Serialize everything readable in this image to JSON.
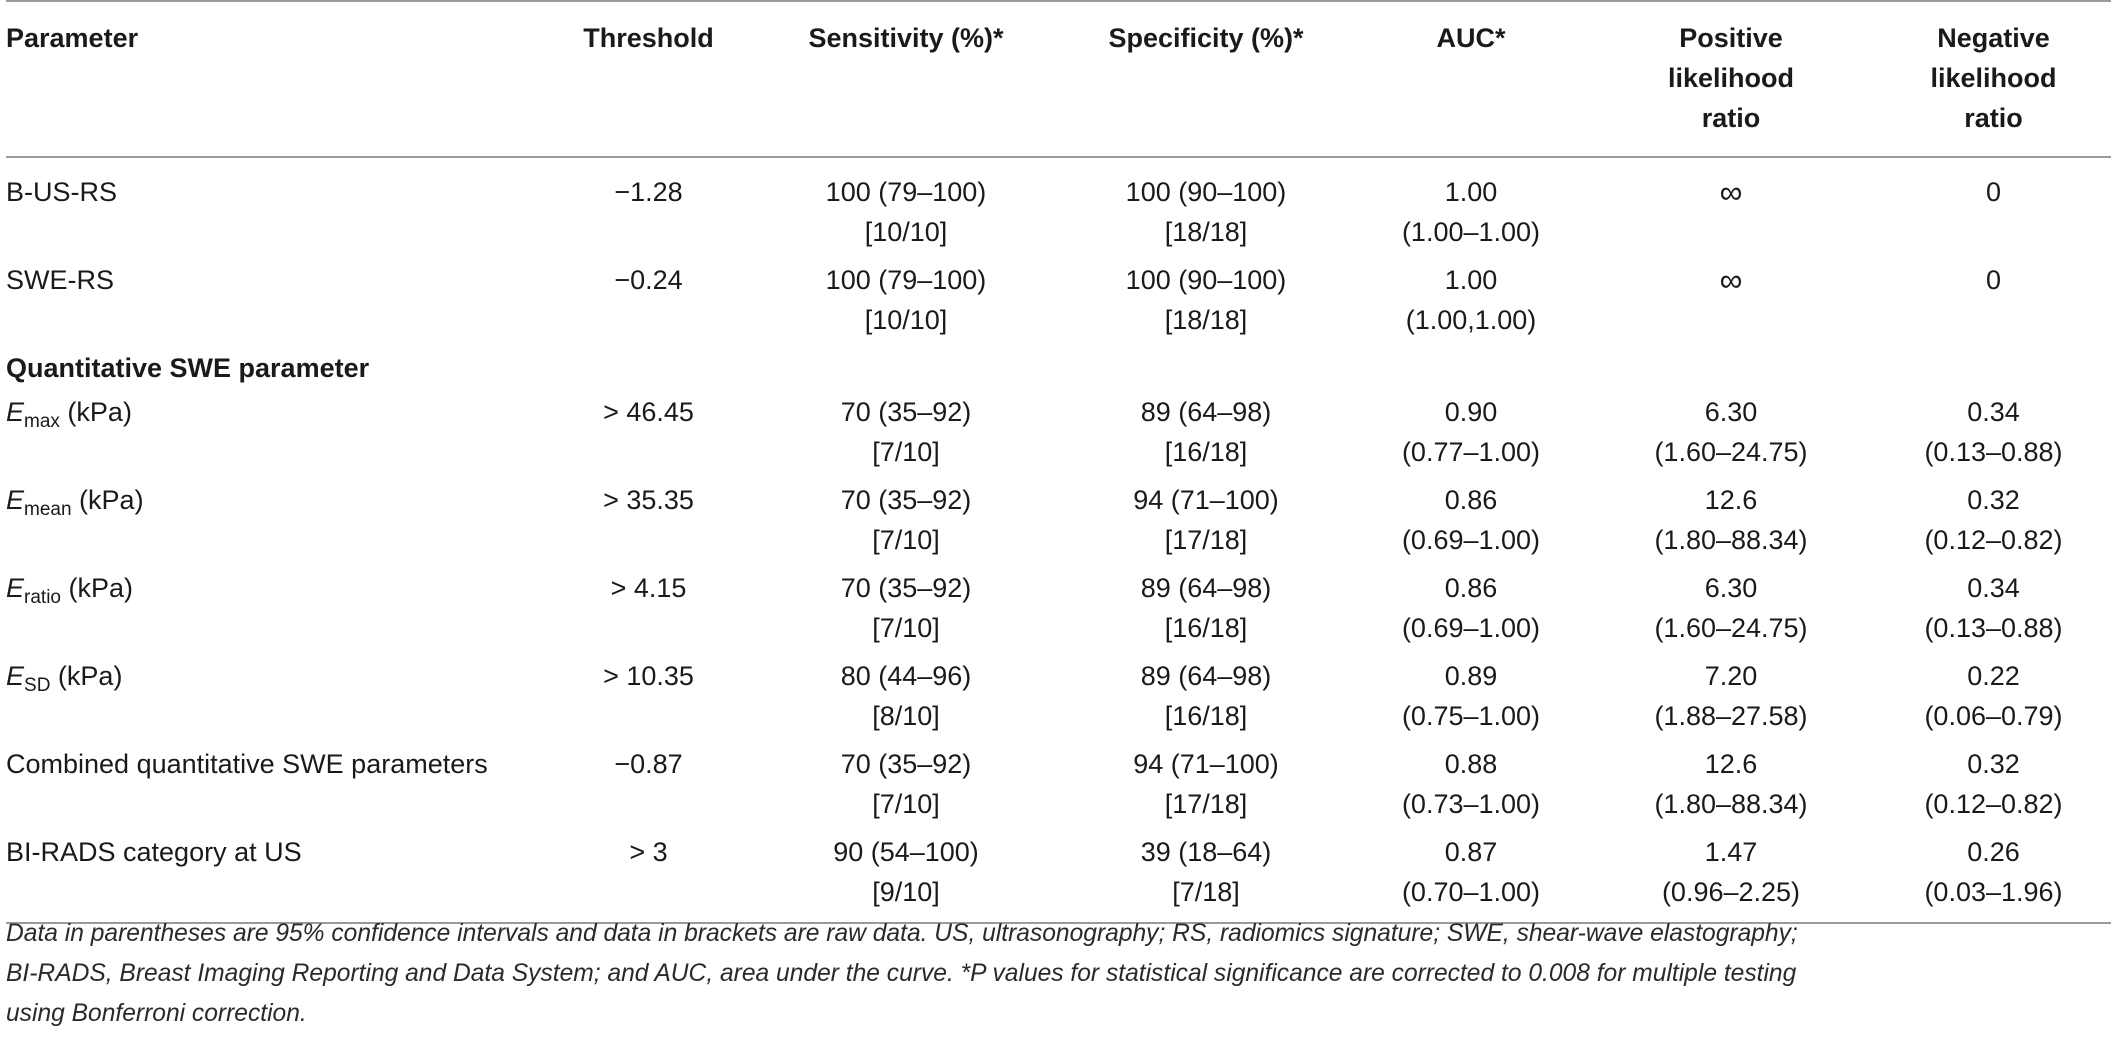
{
  "table": {
    "headers": {
      "parameter": "Parameter",
      "threshold": "Threshold",
      "sensitivity": "Sensitivity (%)*",
      "specificity": "Specificity (%)*",
      "auc": "AUC*",
      "plr": [
        "Positive",
        "likelihood",
        "ratio"
      ],
      "nlr": [
        "Negative",
        "likelihood",
        "ratio"
      ]
    },
    "rows": [
      {
        "parameter": "B-US-RS",
        "threshold": "−1.28",
        "sensitivity": [
          "100 (79–100)",
          "[10/10]"
        ],
        "specificity": [
          "100 (90–100)",
          "[18/18]"
        ],
        "auc": [
          "1.00",
          "(1.00–1.00)"
        ],
        "plr": [
          "∞",
          ""
        ],
        "nlr": [
          "0",
          ""
        ]
      },
      {
        "parameter": "SWE-RS",
        "threshold": "−0.24",
        "sensitivity": [
          "100 (79–100)",
          "[10/10]"
        ],
        "specificity": [
          "100 (90–100)",
          "[18/18]"
        ],
        "auc": [
          "1.00",
          "(1.00,1.00)"
        ],
        "plr": [
          "∞",
          ""
        ],
        "nlr": [
          "0",
          ""
        ]
      }
    ],
    "section_title": "Quantitative SWE parameter",
    "quant_rows": [
      {
        "param_symbol": "E",
        "param_sub": "max",
        "param_unit": " (kPa)",
        "threshold": "> 46.45",
        "sensitivity": [
          "70 (35–92)",
          "[7/10]"
        ],
        "specificity": [
          "89 (64–98)",
          "[16/18]"
        ],
        "auc": [
          "0.90",
          "(0.77–1.00)"
        ],
        "plr": [
          "6.30",
          "(1.60–24.75)"
        ],
        "nlr": [
          "0.34",
          "(0.13–0.88)"
        ]
      },
      {
        "param_symbol": "E",
        "param_sub": "mean",
        "param_unit": " (kPa)",
        "threshold": "> 35.35",
        "sensitivity": [
          "70 (35–92)",
          "[7/10]"
        ],
        "specificity": [
          "94 (71–100)",
          "[17/18]"
        ],
        "auc": [
          "0.86",
          "(0.69–1.00)"
        ],
        "plr": [
          "12.6",
          "(1.80–88.34)"
        ],
        "nlr": [
          "0.32",
          "(0.12–0.82)"
        ]
      },
      {
        "param_symbol": "E",
        "param_sub": "ratio",
        "param_unit": " (kPa)",
        "threshold": "> 4.15",
        "sensitivity": [
          "70 (35–92)",
          "[7/10]"
        ],
        "specificity": [
          "89 (64–98)",
          "[16/18]"
        ],
        "auc": [
          "0.86",
          "(0.69–1.00)"
        ],
        "plr": [
          "6.30",
          "(1.60–24.75)"
        ],
        "nlr": [
          "0.34",
          "(0.13–0.88)"
        ]
      },
      {
        "param_symbol": "E",
        "param_sub": "SD",
        "param_unit": " (kPa)",
        "threshold": "> 10.35",
        "sensitivity": [
          "80 (44–96)",
          "[8/10]"
        ],
        "specificity": [
          "89 (64–98)",
          "[16/18]"
        ],
        "auc": [
          "0.89",
          "(0.75–1.00)"
        ],
        "plr": [
          "7.20",
          "(1.88–27.58)"
        ],
        "nlr": [
          "0.22",
          "(0.06–0.79)"
        ]
      }
    ],
    "tail_rows": [
      {
        "parameter": "Combined quantitative SWE parameters",
        "threshold": "−0.87",
        "sensitivity": [
          "70 (35–92)",
          "[7/10]"
        ],
        "specificity": [
          "94 (71–100)",
          "[17/18]"
        ],
        "auc": [
          "0.88",
          "(0.73–1.00)"
        ],
        "plr": [
          "12.6",
          "(1.80–88.34)"
        ],
        "nlr": [
          "0.32",
          "(0.12–0.82)"
        ]
      },
      {
        "parameter": "BI-RADS category at US",
        "threshold": "> 3",
        "sensitivity": [
          "90 (54–100)",
          "[9/10]"
        ],
        "specificity": [
          "39 (18–64)",
          "[7/18]"
        ],
        "auc": [
          "0.87",
          "(0.70–1.00)"
        ],
        "plr": [
          "1.47",
          "(0.96–2.25)"
        ],
        "nlr": [
          "0.26",
          "(0.03–1.96)"
        ]
      }
    ]
  },
  "footnote": {
    "line1": "Data in parentheses are 95% confidence intervals and data in brackets are raw data. US, ultrasonography; RS, radiomics signature; SWE, shear-wave elastography;",
    "line2": "BI-RADS, Breast Imaging Reporting and Data System; and AUC, area under the curve. *P values for statistical significance are corrected to 0.008 for multiple testing",
    "line3": "using Bonferroni correction."
  }
}
